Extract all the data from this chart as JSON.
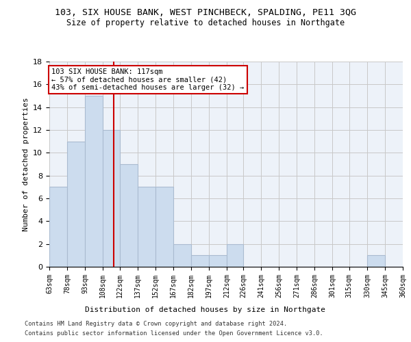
{
  "title": "103, SIX HOUSE BANK, WEST PINCHBECK, SPALDING, PE11 3QG",
  "subtitle": "Size of property relative to detached houses in Northgate",
  "xlabel": "Distribution of detached houses by size in Northgate",
  "ylabel": "Number of detached properties",
  "bar_color": "#ccdcee",
  "bar_edgecolor": "#aabbd0",
  "background_color": "#edf2f9",
  "grid_color": "#c8c8c8",
  "bin_edges": [
    63,
    78,
    93,
    108,
    122,
    137,
    152,
    167,
    182,
    197,
    212,
    226,
    241,
    256,
    271,
    286,
    301,
    315,
    330,
    345,
    360
  ],
  "counts": [
    7,
    11,
    15,
    12,
    9,
    7,
    7,
    2,
    1,
    1,
    2,
    0,
    0,
    0,
    0,
    0,
    0,
    0,
    1,
    0
  ],
  "property_size": 117,
  "annotation_line1": "103 SIX HOUSE BANK: 117sqm",
  "annotation_line2": "← 57% of detached houses are smaller (42)",
  "annotation_line3": "43% of semi-detached houses are larger (32) →",
  "vline_color": "#cc0000",
  "annotation_box_edgecolor": "#cc0000",
  "ylim": [
    0,
    18
  ],
  "yticks": [
    0,
    2,
    4,
    6,
    8,
    10,
    12,
    14,
    16,
    18
  ],
  "footer1": "Contains HM Land Registry data © Crown copyright and database right 2024.",
  "footer2": "Contains public sector information licensed under the Open Government Licence v3.0.",
  "tick_labels": [
    "63sqm",
    "78sqm",
    "93sqm",
    "108sqm",
    "122sqm",
    "137sqm",
    "152sqm",
    "167sqm",
    "182sqm",
    "197sqm",
    "212sqm",
    "226sqm",
    "241sqm",
    "256sqm",
    "271sqm",
    "286sqm",
    "301sqm",
    "315sqm",
    "330sqm",
    "345sqm",
    "360sqm"
  ]
}
